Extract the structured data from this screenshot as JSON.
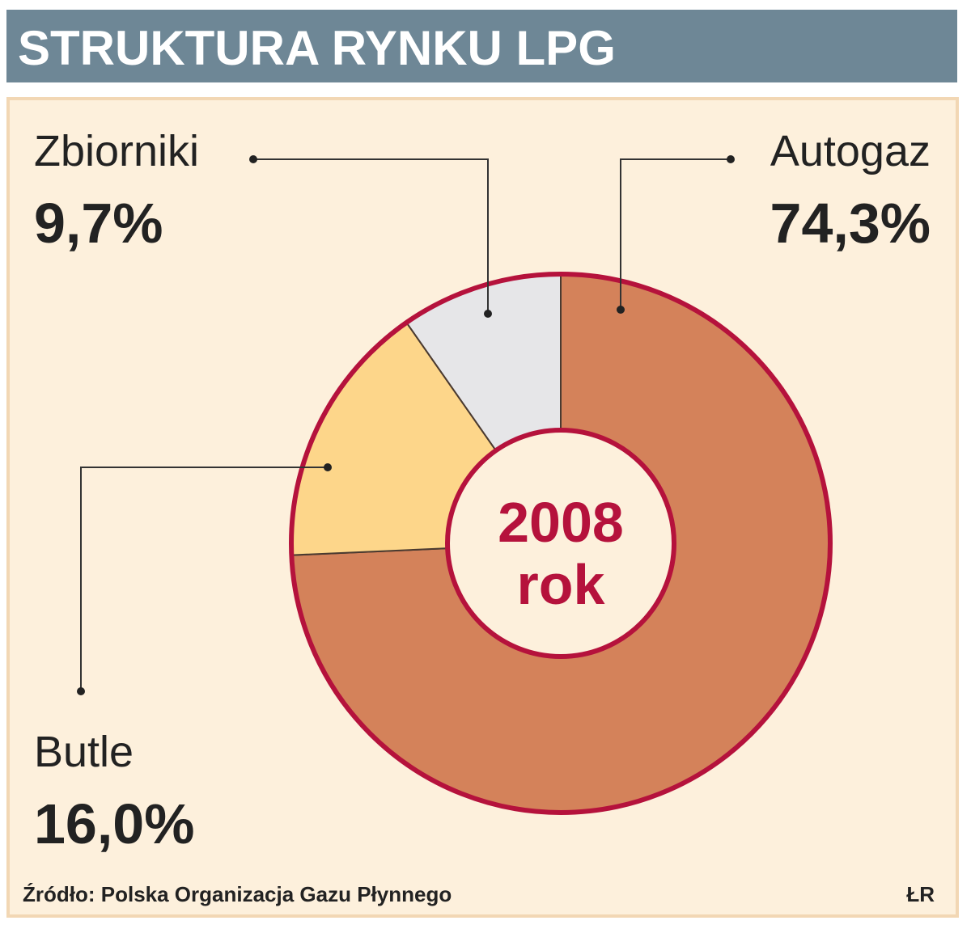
{
  "chart_data": {
    "type": "pie",
    "donut": true,
    "title": "STRUKTURA RYNKU LPG",
    "categories": [
      "Autogaz",
      "Butle",
      "Zbiorniki"
    ],
    "values": [
      74.3,
      16.0,
      9.7
    ],
    "value_labels": [
      "74,3%",
      "16,0%",
      "9,7%"
    ],
    "colors": [
      "#d4825a",
      "#fdd68a",
      "#e6e6e8"
    ],
    "center_text": "2008",
    "center_subtext": "rok",
    "source": "Źródło: Polska Organizacja Gazu Płynnego",
    "credit": "ŁR"
  }
}
